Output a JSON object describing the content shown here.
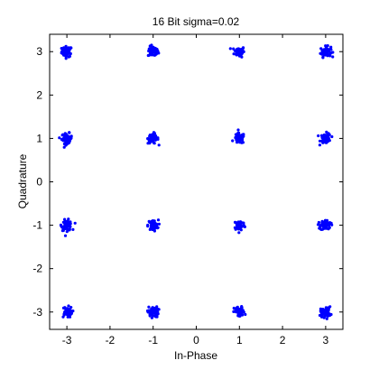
{
  "chart_data": {
    "type": "scatter",
    "title": "16 Bit sigma=0.02",
    "xlabel": "In-Phase",
    "ylabel": "Quadrature",
    "xlim": [
      -3.4,
      3.4
    ],
    "ylim": [
      -3.4,
      3.4
    ],
    "xticks": [
      -3,
      -2,
      -1,
      0,
      1,
      2,
      3
    ],
    "yticks": [
      -3,
      -2,
      -1,
      0,
      1,
      2,
      3
    ],
    "xtick_labels": [
      "-3",
      "-2",
      "-1",
      "0",
      "1",
      "2",
      "3"
    ],
    "ytick_labels": [
      "-3",
      "-2",
      "-1",
      "0",
      "1",
      "2",
      "3"
    ],
    "grid": false,
    "legend": "none",
    "marker": "dot",
    "marker_color": "#0000ff",
    "series": [
      {
        "values_x": [
          -3,
          -1,
          1,
          3,
          -3,
          -1,
          1,
          3,
          -3,
          -1,
          1,
          3,
          -3,
          -1,
          1,
          3
        ],
        "values_y": [
          3,
          3,
          3,
          3,
          1,
          1,
          1,
          1,
          -1,
          -1,
          -1,
          -1,
          -3,
          -3,
          -3,
          -3
        ],
        "noise_sigma_visual": 0.06,
        "points_per_cluster": 60
      }
    ]
  }
}
